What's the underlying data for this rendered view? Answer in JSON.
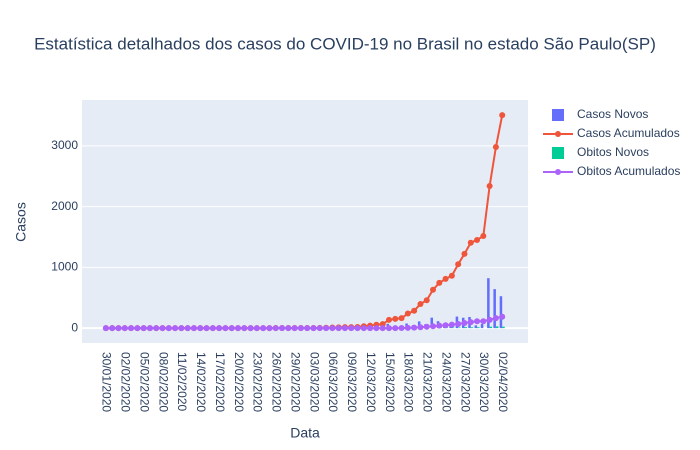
{
  "chart_data": {
    "type": "bar",
    "title": "Estatística detalhados dos casos do COVID-19 no Brasil no estado São Paulo(SP)",
    "x_label": "Data",
    "y_label": "Casos",
    "categories": [
      "30/01/2020",
      null,
      null,
      "02/02/2020",
      null,
      null,
      "05/02/2020",
      null,
      null,
      "08/02/2020",
      null,
      null,
      "11/02/2020",
      null,
      null,
      "14/02/2020",
      null,
      null,
      "17/02/2020",
      null,
      null,
      "20/02/2020",
      null,
      null,
      "23/02/2020",
      null,
      null,
      "26/02/2020",
      null,
      null,
      "29/02/2020",
      null,
      null,
      "03/03/2020",
      null,
      null,
      "06/03/2020",
      null,
      null,
      "09/03/2020",
      null,
      null,
      "12/03/2020",
      null,
      null,
      "15/03/2020",
      null,
      null,
      "18/03/2020",
      null,
      null,
      "21/03/2020",
      null,
      null,
      "24/03/2020",
      null,
      null,
      "27/03/2020",
      null,
      null,
      "30/03/2020",
      null,
      null,
      "02/04/2020"
    ],
    "ylim": [
      -245,
      3755
    ],
    "yticks": [
      0,
      1000,
      2000,
      3000
    ],
    "grid": true,
    "legend": "right",
    "series": [
      {
        "name": "Casos Novos",
        "type": "bar",
        "color": "#636efa",
        "values": [
          0,
          0,
          0,
          0,
          0,
          0,
          0,
          0,
          0,
          0,
          0,
          0,
          0,
          0,
          0,
          0,
          0,
          0,
          0,
          0,
          0,
          0,
          0,
          0,
          0,
          0,
          0,
          1,
          0,
          0,
          1,
          0,
          0,
          0,
          1,
          3,
          4,
          3,
          3,
          0,
          3,
          11,
          12,
          14,
          9,
          71,
          16,
          12,
          76,
          46,
          110,
          63,
          172,
          114,
          65,
          52,
          190,
          171,
          183,
          45,
          66,
          822,
          642,
          525
        ]
      },
      {
        "name": "Casos Acumulados",
        "type": "line",
        "color": "#EF553B",
        "values": [
          0,
          0,
          0,
          0,
          0,
          0,
          0,
          0,
          0,
          0,
          0,
          0,
          0,
          0,
          0,
          0,
          0,
          0,
          0,
          0,
          0,
          0,
          0,
          0,
          0,
          0,
          0,
          1,
          1,
          1,
          2,
          2,
          2,
          2,
          3,
          6,
          10,
          13,
          16,
          16,
          19,
          30,
          42,
          56,
          65,
          136,
          152,
          164,
          240,
          286,
          396,
          459,
          631,
          745,
          810,
          862,
          1052,
          1223,
          1406,
          1451,
          1517,
          2339,
          2981,
          3506
        ]
      },
      {
        "name": "Obitos Novos",
        "type": "bar",
        "color": "#00cc96",
        "values": [
          0,
          0,
          0,
          0,
          0,
          0,
          0,
          0,
          0,
          0,
          0,
          0,
          0,
          0,
          0,
          0,
          0,
          0,
          0,
          0,
          0,
          0,
          0,
          0,
          0,
          0,
          0,
          0,
          0,
          0,
          0,
          0,
          0,
          0,
          0,
          0,
          0,
          0,
          0,
          0,
          0,
          0,
          0,
          0,
          0,
          0,
          0,
          1,
          3,
          5,
          6,
          7,
          8,
          10,
          8,
          10,
          10,
          16,
          14,
          15,
          0,
          23,
          28,
          24
        ]
      },
      {
        "name": "Obitos Acumulados",
        "type": "line",
        "color": "#ab63fa",
        "values": [
          0,
          0,
          0,
          0,
          0,
          0,
          0,
          0,
          0,
          0,
          0,
          0,
          0,
          0,
          0,
          0,
          0,
          0,
          0,
          0,
          0,
          0,
          0,
          0,
          0,
          0,
          0,
          0,
          0,
          0,
          0,
          0,
          0,
          0,
          0,
          0,
          0,
          0,
          0,
          0,
          0,
          0,
          0,
          0,
          0,
          0,
          0,
          1,
          4,
          9,
          15,
          22,
          30,
          40,
          48,
          58,
          68,
          84,
          98,
          113,
          113,
          136,
          164,
          188
        ]
      }
    ]
  }
}
